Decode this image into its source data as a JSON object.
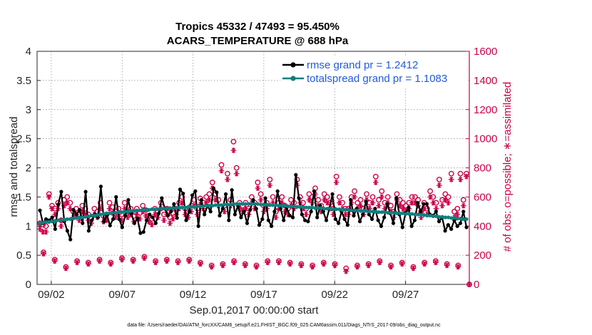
{
  "chart_data": {
    "type": "line",
    "title_line1": "Tropics 45332 / 47493 = 95.450%",
    "title_line2": "ACARS_TEMPERATURE @ 688 hPa",
    "xlabel": "Sep.01,2017 00:00:00 start",
    "ylabel_left": "rmse and totalspread",
    "ylabel_right": "# of obs: o=possible; ∗=assimilated",
    "footer": "data file: /Users/raeder/DAI/ATM_forcXX/CAM6_setup/f.e21.FHIST_BGC.f09_025.CAM6assim.011/Diags_NTrS_2017-09/obs_diag_output.nc",
    "x_tick_labels": [
      "09/02",
      "09/07",
      "09/12",
      "09/17",
      "09/22",
      "09/27"
    ],
    "x_tick_days": [
      2,
      7,
      12,
      17,
      22,
      27
    ],
    "xlim_days": [
      1,
      31.5
    ],
    "ylim_left": [
      0,
      4
    ],
    "y_ticks_left": [
      "0",
      "0.5",
      "1",
      "1.5",
      "2",
      "2.5",
      "3",
      "3.5",
      "4"
    ],
    "ylim_right": [
      0,
      1600
    ],
    "y_ticks_right": [
      "0",
      "200",
      "400",
      "600",
      "800",
      "1000",
      "1200",
      "1400",
      "1600"
    ],
    "legend": [
      {
        "name": "rmse grand pr = 1.2412",
        "color": "#000000"
      },
      {
        "name": "totalspread grand pr = 1.1083",
        "color": "#0f7f7f"
      }
    ],
    "colors": {
      "axis_right": "#cc0047",
      "obs": "#cc0047",
      "legend_text": "#1f5be0",
      "rmse": "#000000",
      "spread": "#0f7f7f"
    },
    "series": [
      {
        "name": "rmse",
        "values": [
          1.27,
          1.05,
          1.12,
          1.1,
          1.15,
          0.95,
          1.37,
          1.59,
          1.08,
          0.92,
          0.77,
          1.28,
          1.2,
          1.28,
          1.05,
          1.59,
          0.92,
          1.1,
          1.2,
          1.15,
          1.68,
          1.08,
          1.19,
          1.01,
          1.12,
          1.5,
          1.12,
          0.98,
          1.18,
          1.45,
          1.22,
          1.05,
          1.13,
          0.88,
          0.9,
          1.1,
          1.2,
          1.15,
          1.05,
          1.22,
          1.48,
          1.3,
          1.18,
          1.25,
          1.38,
          1.14,
          1.63,
          1.56,
          1.1,
          1.25,
          1.53,
          1.6,
          1.0,
          1.45,
          1.2,
          1.35,
          1.25,
          1.65,
          1.58,
          1.18,
          1.3,
          1.55,
          1.1,
          1.62,
          1.2,
          1.35,
          1.15,
          1.25,
          1.05,
          1.28,
          1.45,
          1.3,
          1.02,
          1.12,
          1.48,
          1.1,
          1.0,
          1.25,
          1.6,
          1.3,
          1.1,
          1.32,
          1.18,
          1.15,
          1.88,
          1.48,
          1.2,
          1.1,
          1.08,
          1.25,
          1.6,
          1.15,
          1.35,
          1.25,
          1.1,
          1.3,
          1.55,
          1.12,
          1.05,
          1.25,
          1.12,
          1.02,
          1.45,
          1.18,
          1.3,
          1.08,
          1.2,
          1.42,
          1.2,
          1.12,
          1.3,
          1.1,
          1.0,
          1.15,
          1.38,
          1.22,
          1.05,
          1.48,
          1.2,
          0.98,
          1.22,
          1.32,
          1.0,
          1.1,
          1.4,
          1.25,
          1.38,
          1.38,
          1.2,
          1.18,
          1.25,
          1.08,
          1.15,
          0.92,
          1.02,
          0.95,
          1.1,
          1.0,
          1.05,
          1.25,
          0.98
        ]
      },
      {
        "name": "totalspread",
        "values": [
          1.05,
          1.06,
          1.07,
          1.07,
          1.08,
          1.09,
          1.1,
          1.1,
          1.11,
          1.12,
          1.12,
          1.13,
          1.14,
          1.15,
          1.15,
          1.16,
          1.17,
          1.18,
          1.18,
          1.19,
          1.2,
          1.21,
          1.22,
          1.22,
          1.23,
          1.23,
          1.24,
          1.24,
          1.25,
          1.25,
          1.26,
          1.26,
          1.27,
          1.27,
          1.28,
          1.28,
          1.28,
          1.29,
          1.29,
          1.29,
          1.3,
          1.3,
          1.3,
          1.31,
          1.31,
          1.31,
          1.32,
          1.32,
          1.32,
          1.33,
          1.33,
          1.33,
          1.34,
          1.34,
          1.34,
          1.35,
          1.35,
          1.35,
          1.36,
          1.36,
          1.36,
          1.37,
          1.37,
          1.37,
          1.38,
          1.38,
          1.38,
          1.38,
          1.38,
          1.38,
          1.38,
          1.38,
          1.38,
          1.37,
          1.37,
          1.37,
          1.36,
          1.36,
          1.36,
          1.35,
          1.35,
          1.35,
          1.34,
          1.34,
          1.34,
          1.33,
          1.33,
          1.33,
          1.32,
          1.32,
          1.32,
          1.31,
          1.31,
          1.31,
          1.3,
          1.3,
          1.3,
          1.29,
          1.29,
          1.29,
          1.28,
          1.28,
          1.28,
          1.27,
          1.27,
          1.27,
          1.26,
          1.26,
          1.26,
          1.25,
          1.25,
          1.25,
          1.24,
          1.24,
          1.24,
          1.23,
          1.23,
          1.23,
          1.22,
          1.22,
          1.22,
          1.21,
          1.21,
          1.21,
          1.2,
          1.2,
          1.19,
          1.19,
          1.18,
          1.18,
          1.17,
          1.17,
          1.16,
          1.16,
          1.15,
          1.15,
          1.14,
          1.14,
          1.13,
          1.13,
          1.12,
          1.12
        ]
      }
    ],
    "obs_possible": [
      420,
      410,
      400,
      620,
      540,
      520,
      560,
      440,
      580,
      600,
      560,
      500,
      520,
      480,
      540,
      520,
      480,
      450,
      520,
      500,
      560,
      470,
      480,
      560,
      530,
      500,
      520,
      480,
      560,
      500,
      520,
      470,
      520,
      490,
      540,
      510,
      470,
      450,
      520,
      500,
      560,
      480,
      520,
      460,
      490,
      520,
      560,
      600,
      520,
      500,
      540,
      580,
      520,
      590,
      560,
      600,
      620,
      700,
      620,
      580,
      820,
      540,
      760,
      580,
      980,
      800,
      560,
      540,
      560,
      520,
      600,
      560,
      700,
      620,
      540,
      560,
      720,
      600,
      500,
      560,
      600,
      540,
      520,
      580,
      560,
      720,
      600,
      560,
      520,
      620,
      600,
      660,
      580,
      540,
      620,
      600,
      560,
      520,
      740,
      600,
      560,
      520,
      520,
      600,
      640,
      560,
      580,
      520,
      620,
      560,
      600,
      740,
      580,
      640,
      560,
      600,
      540,
      500,
      620,
      580,
      560,
      540,
      560,
      600,
      600,
      580,
      500,
      560,
      520,
      640,
      600,
      560,
      720,
      580,
      620,
      600,
      760,
      500,
      520,
      760,
      580,
      760
    ],
    "obs_assimilated": [
      380,
      360,
      360,
      600,
      520,
      480,
      520,
      400,
      540,
      560,
      520,
      460,
      480,
      440,
      500,
      480,
      440,
      420,
      480,
      460,
      520,
      430,
      440,
      520,
      490,
      460,
      480,
      440,
      520,
      460,
      480,
      430,
      480,
      450,
      500,
      470,
      430,
      410,
      480,
      460,
      520,
      440,
      480,
      420,
      450,
      480,
      520,
      560,
      480,
      460,
      500,
      540,
      480,
      550,
      520,
      560,
      580,
      660,
      580,
      540,
      780,
      500,
      720,
      540,
      920,
      760,
      520,
      500,
      520,
      480,
      560,
      520,
      660,
      580,
      500,
      520,
      680,
      560,
      460,
      520,
      560,
      500,
      480,
      540,
      520,
      680,
      560,
      520,
      480,
      580,
      560,
      620,
      540,
      500,
      580,
      560,
      520,
      480,
      700,
      560,
      520,
      480,
      480,
      560,
      600,
      520,
      540,
      480,
      580,
      520,
      560,
      700,
      540,
      600,
      520,
      560,
      500,
      460,
      580,
      540,
      520,
      500,
      520,
      560,
      560,
      540,
      460,
      520,
      480,
      600,
      560,
      520,
      680,
      540,
      580,
      560,
      720,
      460,
      480,
      720,
      540,
      740
    ],
    "obs_low_possible": [
      220,
      170,
      120,
      160,
      150,
      170,
      150,
      180,
      170,
      190,
      160,
      170,
      160,
      170,
      150,
      130,
      140,
      160,
      140,
      130,
      160,
      160,
      150,
      140,
      130,
      150,
      140,
      110,
      130,
      140,
      160,
      130,
      150,
      120,
      150,
      160,
      140,
      130,
      0
    ],
    "obs_low_assimilated": [
      210,
      160,
      110,
      150,
      140,
      160,
      140,
      170,
      160,
      180,
      150,
      160,
      150,
      160,
      140,
      120,
      130,
      150,
      130,
      120,
      150,
      150,
      140,
      130,
      120,
      140,
      130,
      90,
      120,
      130,
      150,
      120,
      140,
      110,
      140,
      150,
      130,
      120,
      0
    ]
  }
}
